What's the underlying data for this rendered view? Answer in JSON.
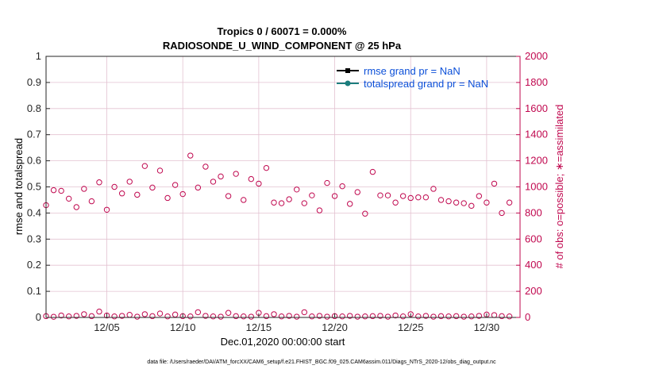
{
  "chart_data": {
    "type": "scatter",
    "title": "Tropics 0 / 60071 = 0.000%",
    "subtitle": "RADIOSONDE_U_WIND_COMPONENT @ 25 hPa",
    "xlabel": "Dec.01,2020 00:00:00 start",
    "ylabel": "rmse and totalspread",
    "ylabel_right": "# of obs: o=possible; ∗=assimilated",
    "xlim": [
      1,
      32.2
    ],
    "ylim": [
      0,
      1
    ],
    "ylim_right": [
      0,
      2000
    ],
    "x_ticks": [
      {
        "value": 5,
        "label": "12/05"
      },
      {
        "value": 10,
        "label": "12/10"
      },
      {
        "value": 15,
        "label": "12/15"
      },
      {
        "value": 20,
        "label": "12/20"
      },
      {
        "value": 25,
        "label": "12/25"
      },
      {
        "value": 30,
        "label": "12/30"
      }
    ],
    "y_ticks": [
      "0",
      "0.1",
      "0.2",
      "0.3",
      "0.4",
      "0.5",
      "0.6",
      "0.7",
      "0.8",
      "0.9",
      "1"
    ],
    "y_ticks_right": [
      "0",
      "200",
      "400",
      "600",
      "800",
      "1000",
      "1200",
      "1400",
      "1600",
      "1800",
      "2000"
    ],
    "grid": true,
    "legend_position": "top-right",
    "legend": [
      {
        "label": "rmse grand pr = NaN",
        "color": "#000000",
        "marker": "square"
      },
      {
        "label": "totalspread grand pr = NaN",
        "color": "#1b7d7d",
        "marker": "circle"
      }
    ],
    "series": [
      {
        "name": "rmse grand pr = NaN",
        "axis": "left",
        "color": "#000000",
        "values": []
      },
      {
        "name": "totalspread grand pr = NaN",
        "axis": "left",
        "color": "#1b7d7d",
        "values": []
      },
      {
        "axis": "right",
        "color": "#c0084f",
        "marker": "open-circle",
        "x": [
          1.0,
          1.5,
          2.0,
          2.5,
          3.0,
          3.5,
          4.0,
          4.5,
          5.0,
          5.5,
          6.0,
          6.5,
          7.0,
          7.5,
          8.0,
          8.5,
          9.0,
          9.5,
          10.0,
          10.5,
          11.0,
          11.5,
          12.0,
          12.5,
          13.0,
          13.5,
          14.0,
          14.5,
          15.0,
          15.5,
          16.0,
          16.5,
          17.0,
          17.5,
          18.0,
          18.5,
          19.0,
          19.5,
          20.0,
          20.5,
          21.0,
          21.5,
          22.0,
          22.5,
          23.0,
          23.5,
          24.0,
          24.5,
          25.0,
          25.5,
          26.0,
          26.5,
          27.0,
          27.5,
          28.0,
          28.5,
          29.0,
          29.5,
          30.0,
          30.5,
          31.0,
          31.5
        ],
        "values": [
          860,
          975,
          970,
          910,
          845,
          985,
          890,
          1035,
          825,
          1000,
          950,
          1040,
          940,
          1160,
          995,
          1125,
          915,
          1015,
          945,
          1240,
          995,
          1155,
          1040,
          1080,
          930,
          1100,
          900,
          1060,
          1025,
          1145,
          880,
          875,
          905,
          980,
          875,
          935,
          820,
          1030,
          930,
          1005,
          870,
          960,
          795,
          1115,
          935,
          935,
          880,
          930,
          915,
          920,
          920,
          985,
          900,
          890,
          880,
          875,
          855,
          930,
          880,
          1025,
          800,
          880
        ]
      },
      {
        "axis": "right",
        "color": "#c0084f",
        "marker": "open-circle",
        "x": [
          1.0,
          1.5,
          2.0,
          2.5,
          3.0,
          3.5,
          4.0,
          4.5,
          5.0,
          5.5,
          6.0,
          6.5,
          7.0,
          7.5,
          8.0,
          8.5,
          9.0,
          9.5,
          10.0,
          10.5,
          11.0,
          11.5,
          12.0,
          12.5,
          13.0,
          13.5,
          14.0,
          14.5,
          15.0,
          15.5,
          16.0,
          16.5,
          17.0,
          17.5,
          18.0,
          18.5,
          19.0,
          19.5,
          20.0,
          20.5,
          21.0,
          21.5,
          22.0,
          22.5,
          23.0,
          23.5,
          24.0,
          24.5,
          25.0,
          25.5,
          26.0,
          26.5,
          27.0,
          27.5,
          28.0,
          28.5,
          29.0,
          29.5,
          30.0,
          30.5,
          31.0,
          31.5
        ],
        "values": [
          10,
          5,
          15,
          8,
          12,
          25,
          10,
          45,
          15,
          8,
          12,
          20,
          6,
          25,
          10,
          30,
          8,
          22,
          10,
          8,
          40,
          12,
          8,
          6,
          35,
          10,
          8,
          6,
          35,
          10,
          25,
          8,
          12,
          6,
          40,
          8,
          12,
          6,
          10,
          8,
          12,
          6,
          8,
          10,
          12,
          6,
          15,
          8,
          25,
          8,
          12,
          6,
          10,
          8,
          10,
          6,
          8,
          12,
          22,
          18,
          10,
          8
        ]
      }
    ]
  },
  "footer": "data file: /Users/raeder/DAI/ATM_forcXX/CAM6_setup/f.e21.FHIST_BGC.f09_025.CAM6assim.011/Diags_NTrS_2020-12/obs_diag_output.nc"
}
